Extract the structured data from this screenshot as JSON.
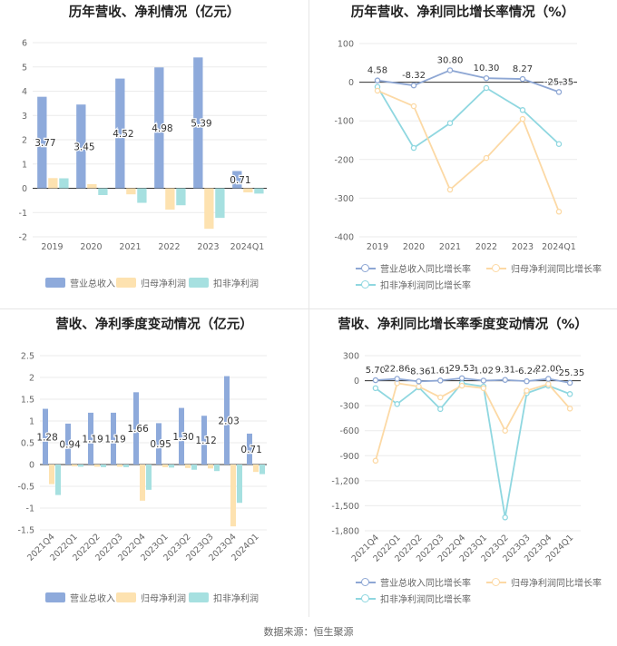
{
  "footer": {
    "source": "数据来源：恒生聚源"
  },
  "colors": {
    "revenue": "#8eaadb",
    "net_profit": "#fde2b0",
    "deducted_profit": "#a6e0e0",
    "rev_line": "#8ea7d4",
    "np_line": "#fcd9a5",
    "dp_line": "#8fd7e0"
  },
  "charts": {
    "annual": {
      "title": "历年营收、净利情况（亿元）",
      "legend": [
        "营业总收入",
        "归母净利润",
        "扣非净利润"
      ],
      "yticks": [
        "6",
        "5",
        "4",
        "3",
        "2",
        "1",
        "0",
        "-1",
        "-2"
      ]
    },
    "annual_growth": {
      "title": "历年营收、净利同比增长率情况（%）",
      "legend": [
        "营业总收入同比增长率",
        "归母净利润同比增长率",
        "扣非净利润同比增长率"
      ],
      "yticks": [
        "100",
        "0",
        "-100",
        "-200",
        "-300",
        "-400"
      ]
    },
    "quarterly": {
      "title": "营收、净利季度变动情况（亿元）",
      "legend": [
        "营业总收入",
        "归母净利润",
        "扣非净利润"
      ],
      "yticks": [
        "2.5",
        "2",
        "1.5",
        "1",
        "0.5",
        "0",
        "-0.5",
        "-1",
        "-1.5"
      ]
    },
    "quarterly_growth": {
      "title": "营收、净利同比增长率季度变动情况（%）",
      "legend": [
        "营业总收入同比增长率",
        "归母净利润同比增长率",
        "扣非净利润同比增长率"
      ],
      "yticks": [
        "300",
        "0",
        "-300",
        "-600",
        "-900",
        "-1,200",
        "-1,500",
        "-1,800"
      ]
    }
  },
  "chart_data": [
    {
      "type": "bar",
      "title": "历年营收、净利情况（亿元）",
      "categories": [
        "2019",
        "2020",
        "2021",
        "2022",
        "2023",
        "2024Q1"
      ],
      "ylim": [
        -2,
        6
      ],
      "series": [
        {
          "name": "营业总收入",
          "values": [
            3.77,
            3.45,
            4.52,
            4.98,
            5.39,
            0.71
          ],
          "labels": [
            "3.77",
            "3.45",
            "4.52",
            "4.98",
            "5.39",
            "0.71"
          ]
        },
        {
          "name": "归母净利润",
          "values": [
            0.42,
            0.17,
            -0.25,
            -0.88,
            -1.67,
            -0.17
          ]
        },
        {
          "name": "扣非净利润",
          "values": [
            0.41,
            -0.28,
            -0.6,
            -0.7,
            -1.22,
            -0.22
          ]
        }
      ]
    },
    {
      "type": "line",
      "title": "历年营收、净利同比增长率情况（%）",
      "categories": [
        "2019",
        "2020",
        "2021",
        "2022",
        "2023",
        "2024Q1"
      ],
      "ylim": [
        -400,
        100
      ],
      "series": [
        {
          "name": "营业总收入同比增长率",
          "values": [
            4.58,
            -8.32,
            30.8,
            10.3,
            8.27,
            -25.35
          ],
          "labels": [
            "4.58",
            "-8.32",
            "30.80",
            "10.30",
            "8.27",
            "-25.35"
          ]
        },
        {
          "name": "归母净利润同比增长率",
          "values": [
            -22,
            -62,
            -278,
            -196,
            -95,
            -335
          ]
        },
        {
          "name": "扣非净利润同比增长率",
          "values": [
            -12,
            -170,
            -106,
            -15,
            -72,
            -160
          ]
        }
      ]
    },
    {
      "type": "bar",
      "title": "营收、净利季度变动情况（亿元）",
      "categories": [
        "2021Q4",
        "2022Q1",
        "2022Q2",
        "2022Q3",
        "2022Q4",
        "2023Q1",
        "2023Q2",
        "2023Q3",
        "2023Q4",
        "2024Q1"
      ],
      "ylim": [
        -1.5,
        2.5
      ],
      "series": [
        {
          "name": "营业总收入",
          "values": [
            1.28,
            0.94,
            1.19,
            1.19,
            1.66,
            0.95,
            1.3,
            1.12,
            2.03,
            0.71
          ],
          "labels": [
            "1.28",
            "0.94",
            "1.19",
            "1.19",
            "1.66",
            "0.95",
            "1.30",
            "1.12",
            "2.03",
            "0.71"
          ]
        },
        {
          "name": "归母净利润",
          "values": [
            -0.45,
            -0.04,
            -0.05,
            -0.05,
            -0.83,
            -0.06,
            -0.08,
            -0.09,
            -1.42,
            -0.17
          ]
        },
        {
          "name": "扣非净利润",
          "values": [
            -0.7,
            -0.05,
            -0.06,
            -0.06,
            -0.58,
            -0.07,
            -0.12,
            -0.15,
            -0.88,
            -0.22
          ]
        }
      ]
    },
    {
      "type": "line",
      "title": "营收、净利同比增长率季度变动情况（%）",
      "categories": [
        "2021Q4",
        "2022Q1",
        "2022Q2",
        "2022Q3",
        "2022Q4",
        "2023Q1",
        "2023Q2",
        "2023Q3",
        "2023Q4",
        "2024Q1"
      ],
      "ylim": [
        -1800,
        300
      ],
      "series": [
        {
          "name": "营业总收入同比增长率",
          "values": [
            5.7,
            22.86,
            -8.36,
            1.61,
            29.53,
            1.02,
            9.31,
            -6.24,
            22.0,
            -25.35
          ],
          "labels": [
            "5.70",
            "22.86",
            "-8.36",
            "1.61",
            "29.53",
            "1.02",
            "9.31",
            "-6.24",
            "22.00",
            "-25.35"
          ]
        },
        {
          "name": "归母净利润同比增长率",
          "values": [
            -960,
            -30,
            -70,
            -200,
            -60,
            -90,
            -600,
            -120,
            -40,
            -335
          ]
        },
        {
          "name": "扣非净利润同比增长率",
          "values": [
            -90,
            -280,
            -80,
            -340,
            -30,
            -70,
            -1640,
            -150,
            -60,
            -160
          ]
        }
      ]
    }
  ]
}
